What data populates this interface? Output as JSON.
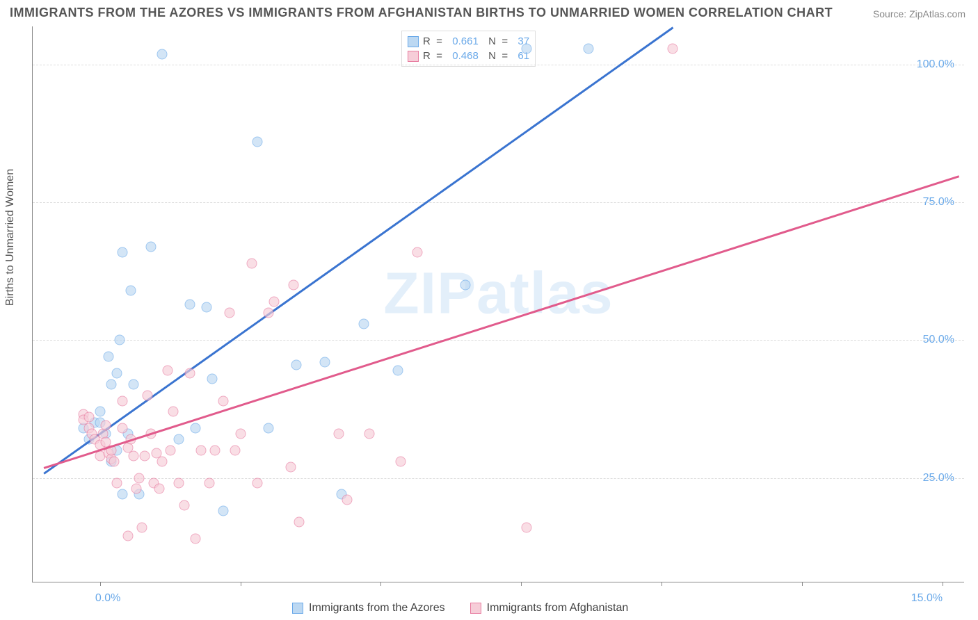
{
  "title": "IMMIGRANTS FROM THE AZORES VS IMMIGRANTS FROM AFGHANISTAN BIRTHS TO UNMARRIED WOMEN CORRELATION CHART",
  "source": "Source: ZipAtlas.com",
  "yaxis_label": "Births to Unmarried Women",
  "watermark": "ZIPatlas",
  "chart": {
    "type": "scatter",
    "xlim": [
      -1.2,
      15.4
    ],
    "ylim": [
      6,
      107
    ],
    "xticks": [
      0,
      2.5,
      5,
      7.5,
      10,
      12.5,
      15
    ],
    "xtick_labels": {
      "0": "0.0%",
      "15": "15.0%"
    },
    "yticks": [
      25,
      50,
      75,
      100
    ],
    "ytick_labels": {
      "25": "25.0%",
      "50": "50.0%",
      "75": "75.0%",
      "100": "100.0%"
    },
    "background": "#ffffff",
    "grid_color": "#dddddd",
    "axis_color": "#888888",
    "tick_label_color": "#6aa9e9",
    "series": [
      {
        "name": "Immigrants from the Azores",
        "fill": "#bcd8f2",
        "stroke": "#6aa9e9",
        "trend_color": "#3a74d0",
        "R": "0.661",
        "N": "37",
        "trend": {
          "x1": -1.0,
          "y1": 26,
          "x2": 10.2,
          "y2": 107
        },
        "points": [
          [
            -0.3,
            34
          ],
          [
            -0.1,
            35
          ],
          [
            -0.2,
            32
          ],
          [
            0.0,
            37
          ],
          [
            0.0,
            35
          ],
          [
            0.1,
            33
          ],
          [
            0.15,
            47
          ],
          [
            0.2,
            42
          ],
          [
            0.2,
            28
          ],
          [
            0.3,
            30
          ],
          [
            0.3,
            44
          ],
          [
            0.35,
            50
          ],
          [
            0.4,
            66
          ],
          [
            0.4,
            22
          ],
          [
            0.5,
            33
          ],
          [
            0.55,
            59
          ],
          [
            0.6,
            42
          ],
          [
            0.7,
            22
          ],
          [
            0.9,
            67
          ],
          [
            1.1,
            102
          ],
          [
            1.4,
            32
          ],
          [
            1.6,
            56.5
          ],
          [
            1.7,
            34
          ],
          [
            1.9,
            56
          ],
          [
            2.0,
            43
          ],
          [
            2.2,
            19
          ],
          [
            2.8,
            86
          ],
          [
            3.0,
            34
          ],
          [
            3.5,
            45.5
          ],
          [
            4.0,
            46
          ],
          [
            4.3,
            22
          ],
          [
            4.7,
            53
          ],
          [
            5.3,
            44.5
          ],
          [
            6.5,
            60
          ],
          [
            7.6,
            103
          ],
          [
            8.7,
            103
          ]
        ]
      },
      {
        "name": "Immigrants from Afghanistan",
        "fill": "#f6cdd8",
        "stroke": "#e87ca0",
        "trend_color": "#e15b8c",
        "R": "0.468",
        "N": "61",
        "trend": {
          "x1": -1.0,
          "y1": 27,
          "x2": 15.3,
          "y2": 80
        },
        "points": [
          [
            -0.3,
            36.5
          ],
          [
            -0.3,
            35.5
          ],
          [
            -0.2,
            36
          ],
          [
            -0.2,
            34
          ],
          [
            -0.15,
            33
          ],
          [
            -0.1,
            32
          ],
          [
            0.0,
            29
          ],
          [
            0.0,
            31
          ],
          [
            0.05,
            33
          ],
          [
            0.1,
            34.5
          ],
          [
            0.1,
            31.5
          ],
          [
            0.15,
            29.5
          ],
          [
            0.2,
            28.5
          ],
          [
            0.2,
            30
          ],
          [
            0.25,
            28
          ],
          [
            0.3,
            24
          ],
          [
            0.4,
            34
          ],
          [
            0.4,
            39
          ],
          [
            0.5,
            14.5
          ],
          [
            0.5,
            30.5
          ],
          [
            0.55,
            32
          ],
          [
            0.6,
            29
          ],
          [
            0.65,
            23
          ],
          [
            0.7,
            25
          ],
          [
            0.75,
            16
          ],
          [
            0.8,
            29
          ],
          [
            0.85,
            40
          ],
          [
            0.9,
            33
          ],
          [
            0.95,
            24
          ],
          [
            1.0,
            29.5
          ],
          [
            1.05,
            23
          ],
          [
            1.1,
            28
          ],
          [
            1.2,
            44.5
          ],
          [
            1.25,
            30
          ],
          [
            1.3,
            37
          ],
          [
            1.4,
            24
          ],
          [
            1.5,
            20
          ],
          [
            1.6,
            44
          ],
          [
            1.7,
            14
          ],
          [
            1.8,
            30
          ],
          [
            1.95,
            24
          ],
          [
            2.05,
            30
          ],
          [
            2.2,
            39
          ],
          [
            2.3,
            55
          ],
          [
            2.4,
            30
          ],
          [
            2.5,
            33
          ],
          [
            2.7,
            64
          ],
          [
            2.8,
            24
          ],
          [
            3.0,
            55
          ],
          [
            3.1,
            57
          ],
          [
            3.4,
            27
          ],
          [
            3.45,
            60
          ],
          [
            3.55,
            17
          ],
          [
            4.25,
            33
          ],
          [
            4.4,
            21
          ],
          [
            4.8,
            33
          ],
          [
            5.35,
            28
          ],
          [
            5.65,
            66
          ],
          [
            7.6,
            16
          ],
          [
            10.2,
            103
          ]
        ]
      }
    ]
  },
  "legend_labels": {
    "R_prefix": "R  = ",
    "N_prefix": "N  = "
  },
  "bottom_legend": [
    {
      "label": "Immigrants from the Azores",
      "fill": "#bcd8f2",
      "stroke": "#6aa9e9"
    },
    {
      "label": "Immigrants from Afghanistan",
      "fill": "#f6cdd8",
      "stroke": "#e87ca0"
    }
  ]
}
